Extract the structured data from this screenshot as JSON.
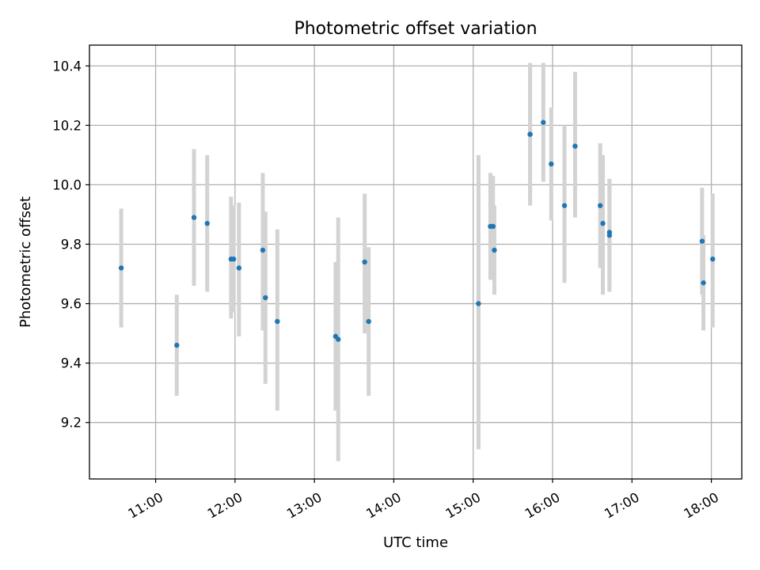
{
  "chart_data": {
    "type": "scatter",
    "title": "Photometric offset variation",
    "xlabel": "UTC time",
    "ylabel": "Photometric offset",
    "x_axis_type": "time",
    "xlim": [
      "10:10",
      "18:23"
    ],
    "ylim": [
      9.01,
      10.47
    ],
    "x_ticks": [
      "11:00",
      "12:00",
      "13:00",
      "14:00",
      "15:00",
      "16:00",
      "17:00",
      "18:00"
    ],
    "y_ticks": [
      9.2,
      9.4,
      9.6,
      9.8,
      10.0,
      10.2,
      10.4
    ],
    "grid": true,
    "point_color": "#1f77b4",
    "errorbar_color": "#d3d3d3",
    "series": [
      {
        "points": [
          {
            "x": "10:34",
            "y": 9.72,
            "ylow": 9.52,
            "yhigh": 9.92
          },
          {
            "x": "11:16",
            "y": 9.46,
            "ylow": 9.29,
            "yhigh": 9.63
          },
          {
            "x": "11:29",
            "y": 9.89,
            "ylow": 9.66,
            "yhigh": 10.12
          },
          {
            "x": "11:39",
            "y": 9.87,
            "ylow": 9.64,
            "yhigh": 10.1
          },
          {
            "x": "11:57",
            "y": 9.75,
            "ylow": 9.55,
            "yhigh": 9.96
          },
          {
            "x": "11:59",
            "y": 9.75,
            "ylow": 9.57,
            "yhigh": 9.93
          },
          {
            "x": "12:03",
            "y": 9.72,
            "ylow": 9.49,
            "yhigh": 9.94
          },
          {
            "x": "12:21",
            "y": 9.78,
            "ylow": 9.51,
            "yhigh": 10.04
          },
          {
            "x": "12:23",
            "y": 9.62,
            "ylow": 9.33,
            "yhigh": 9.91
          },
          {
            "x": "12:32",
            "y": 9.54,
            "ylow": 9.24,
            "yhigh": 9.85
          },
          {
            "x": "13:16",
            "y": 9.49,
            "ylow": 9.24,
            "yhigh": 9.74
          },
          {
            "x": "13:18",
            "y": 9.48,
            "ylow": 9.07,
            "yhigh": 9.89
          },
          {
            "x": "13:38",
            "y": 9.74,
            "ylow": 9.5,
            "yhigh": 9.97
          },
          {
            "x": "13:41",
            "y": 9.54,
            "ylow": 9.29,
            "yhigh": 9.79
          },
          {
            "x": "15:04",
            "y": 9.6,
            "ylow": 9.11,
            "yhigh": 10.1
          },
          {
            "x": "15:13",
            "y": 9.86,
            "ylow": 9.68,
            "yhigh": 10.04
          },
          {
            "x": "15:15",
            "y": 9.86,
            "ylow": 9.69,
            "yhigh": 10.03
          },
          {
            "x": "15:16",
            "y": 9.78,
            "ylow": 9.63,
            "yhigh": 9.93
          },
          {
            "x": "15:43",
            "y": 10.17,
            "ylow": 9.93,
            "yhigh": 10.41
          },
          {
            "x": "15:43",
            "y": 10.17,
            "ylow": 9.93,
            "yhigh": 10.4
          },
          {
            "x": "15:53",
            "y": 10.21,
            "ylow": 10.01,
            "yhigh": 10.41
          },
          {
            "x": "15:59",
            "y": 10.07,
            "ylow": 9.88,
            "yhigh": 10.26
          },
          {
            "x": "16:09",
            "y": 9.93,
            "ylow": 9.67,
            "yhigh": 10.2
          },
          {
            "x": "16:17",
            "y": 10.13,
            "ylow": 9.89,
            "yhigh": 10.38
          },
          {
            "x": "16:36",
            "y": 9.93,
            "ylow": 9.72,
            "yhigh": 10.14
          },
          {
            "x": "16:38",
            "y": 9.87,
            "ylow": 9.63,
            "yhigh": 10.1
          },
          {
            "x": "16:43",
            "y": 9.83,
            "ylow": 9.64,
            "yhigh": 10.02
          },
          {
            "x": "16:43",
            "y": 9.84,
            "ylow": 9.66,
            "yhigh": 10.02
          },
          {
            "x": "17:53",
            "y": 9.81,
            "ylow": 9.63,
            "yhigh": 9.99
          },
          {
            "x": "17:54",
            "y": 9.67,
            "ylow": 9.51,
            "yhigh": 9.83
          },
          {
            "x": "18:01",
            "y": 9.75,
            "ylow": 9.52,
            "yhigh": 9.97
          }
        ]
      }
    ]
  }
}
